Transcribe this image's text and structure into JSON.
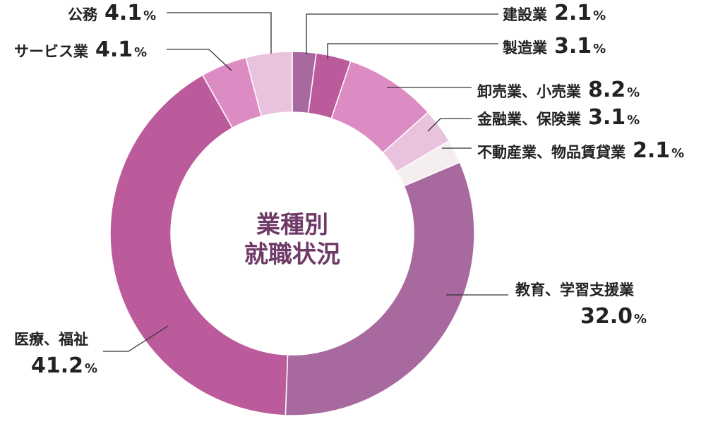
{
  "chart_data": {
    "type": "pie",
    "title_lines": [
      "業種別",
      "就職状況"
    ],
    "title_color": "#6e3a67",
    "percent_sign": "%",
    "slices": [
      {
        "label": "建設業",
        "value_text": "2.1",
        "value": 2.1,
        "color": "#a8699e"
      },
      {
        "label": "製造業",
        "value_text": "3.1",
        "value": 3.1,
        "color": "#bb5b9b"
      },
      {
        "label": "卸売業、小売業",
        "value_text": "8.2",
        "value": 8.2,
        "color": "#dd8bc3"
      },
      {
        "label": "金融業、保険業",
        "value_text": "3.1",
        "value": 3.1,
        "color": "#e9c2dd"
      },
      {
        "label": "不動産業、物品賃貸業",
        "value_text": "2.1",
        "value": 2.1,
        "color": "#f4eeee"
      },
      {
        "label": "教育、学習支援業",
        "value_text": "32.0",
        "value": 32.0,
        "color": "#a8699e"
      },
      {
        "label": "医療、福祉",
        "value_text": "41.2",
        "value": 41.2,
        "color": "#bb5b9b"
      },
      {
        "label": "サービス業",
        "value_text": "4.1",
        "value": 4.1,
        "color": "#dd8bc3"
      },
      {
        "label": "公務",
        "value_text": "4.1",
        "value": 4.1,
        "color": "#e9c2dd"
      }
    ]
  }
}
